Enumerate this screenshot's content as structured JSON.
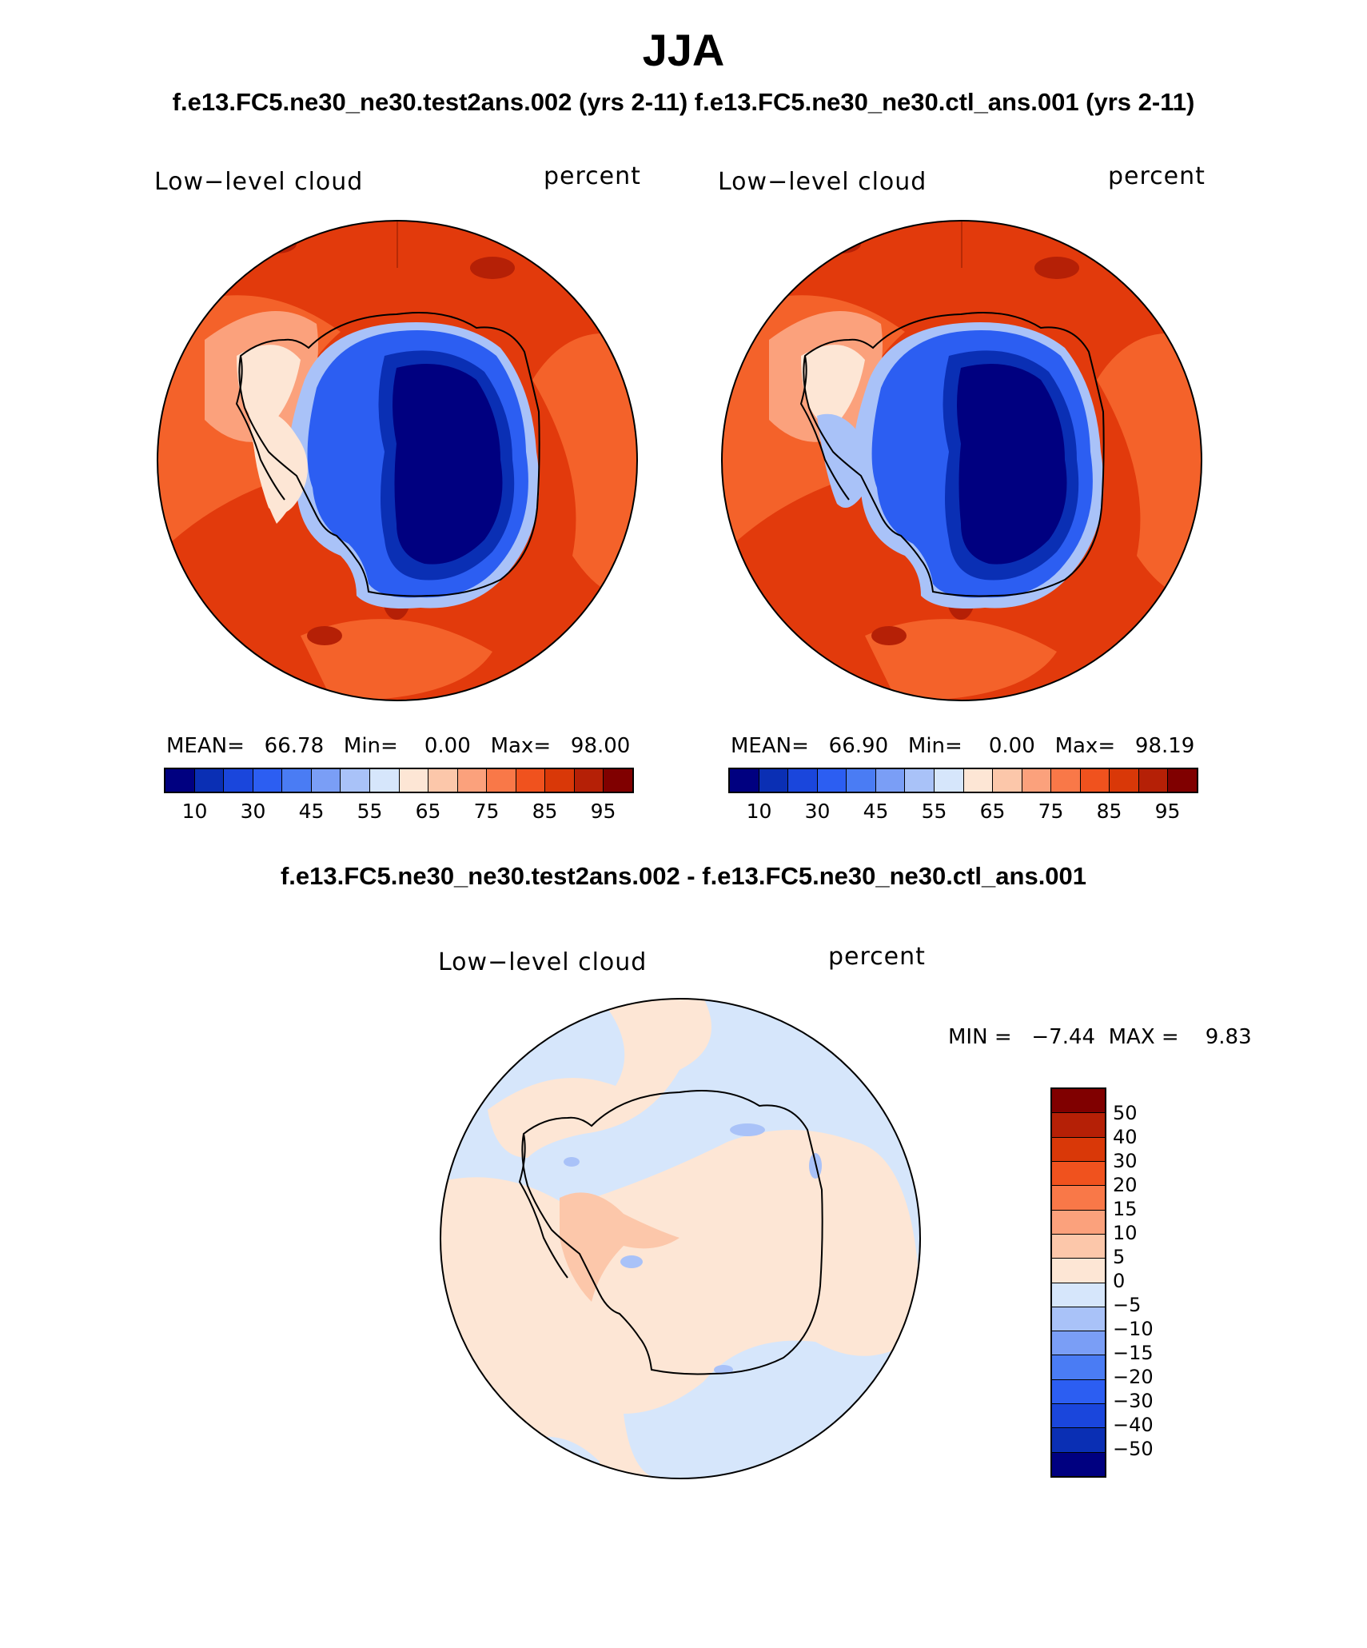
{
  "title": "JJA",
  "case_titles": "f.e13.FC5.ne30_ne30.test2ans.002 (yrs 2-11)   f.e13.FC5.ne30_ne30.ctl_ans.001 (yrs 2-11)",
  "diff_title": "f.e13.FC5.ne30_ne30.test2ans.002 - f.e13.FC5.ne30_ne30.ctl_ans.001",
  "panels": [
    {
      "variable": "Low−level cloud",
      "units": "percent",
      "stats": "MEAN=   66.78   Min=    0.00   Max=   98.00",
      "mean": 66.78,
      "min": 0.0,
      "max": 98.0
    },
    {
      "variable": "Low−level cloud",
      "units": "percent",
      "stats": "MEAN=   66.90   Min=    0.00   Max=   98.19",
      "mean": 66.9,
      "min": 0.0,
      "max": 98.19
    }
  ],
  "diff_panel": {
    "variable": "Low−level cloud",
    "units": "percent",
    "stats": "MIN =   −7.44  MAX =    9.83",
    "min": -7.44,
    "max": 9.83
  },
  "field_colorbar": {
    "colors": [
      "#000080",
      "#0a2fb4",
      "#1a46dc",
      "#2c5ef2",
      "#4a7cf4",
      "#7a9ef6",
      "#a9c2f8",
      "#d6e6fb",
      "#fde6d5",
      "#fcc7aa",
      "#fba17c",
      "#f97848",
      "#f0521e",
      "#d93808",
      "#b52006",
      "#800000"
    ],
    "tick_labels": [
      "10",
      "30",
      "45",
      "55",
      "65",
      "75",
      "85",
      "95"
    ]
  },
  "diff_colorbar": {
    "colors_top_to_bottom": [
      "#800000",
      "#b52006",
      "#d93808",
      "#f0521e",
      "#f97848",
      "#fba17c",
      "#fcc7aa",
      "#fde6d5",
      "#d6e6fb",
      "#a9c2f8",
      "#7a9ef6",
      "#4a7cf4",
      "#2c5ef2",
      "#1a46dc",
      "#0a2fb4",
      "#000080"
    ],
    "tick_labels": [
      "50",
      "40",
      "30",
      "20",
      "15",
      "10",
      "5",
      "0",
      "−5",
      "−10",
      "−15",
      "−20",
      "−30",
      "−40",
      "−50"
    ]
  },
  "colors": {
    "ocean_high": "#e23a0c",
    "ocean_mid": "#f4622a",
    "ice_low": "#000080",
    "ice_mid": "#2c5ef2",
    "diff_pos": "#fde6d5",
    "diff_neg": "#d6e6fb"
  }
}
